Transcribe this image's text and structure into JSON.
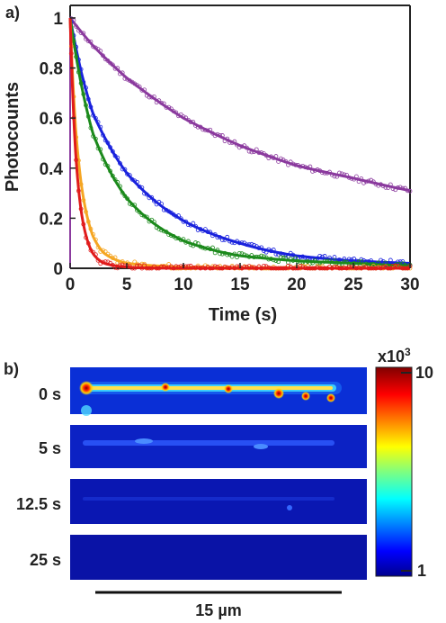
{
  "panel_a": {
    "label": "a)",
    "chart_data": {
      "type": "line",
      "xlabel": "Time (s)",
      "ylabel": "Photocounts",
      "xlim": [
        0,
        30
      ],
      "ylim": [
        0,
        1.05
      ],
      "x_ticks": [
        "0",
        "5",
        "10",
        "15",
        "20",
        "25",
        "30"
      ],
      "y_ticks": [
        "0",
        "0.2",
        "0.4",
        "0.6",
        "0.8",
        "1"
      ],
      "grid": false,
      "legend": "none",
      "series": [
        {
          "color": "#8b3a9e",
          "x": [
            0,
            2,
            5,
            10,
            15,
            20,
            25,
            30
          ],
          "y": [
            1.0,
            0.89,
            0.76,
            0.6,
            0.49,
            0.41,
            0.36,
            0.31
          ]
        },
        {
          "color": "#1a22dd",
          "x": [
            0,
            1,
            2,
            5,
            10,
            15,
            20,
            25,
            30
          ],
          "y": [
            1.0,
            0.78,
            0.62,
            0.38,
            0.19,
            0.1,
            0.05,
            0.03,
            0.02
          ]
        },
        {
          "color": "#1c8a1c",
          "x": [
            0,
            1,
            2,
            5,
            10,
            15,
            20,
            25,
            30
          ],
          "y": [
            1.0,
            0.73,
            0.54,
            0.28,
            0.11,
            0.05,
            0.03,
            0.02,
            0.01
          ]
        },
        {
          "color": "#f5a623",
          "x": [
            0,
            0.5,
            1,
            2,
            3,
            5,
            10,
            30
          ],
          "y": [
            1.0,
            0.55,
            0.33,
            0.13,
            0.06,
            0.02,
            0.005,
            0.0
          ]
        },
        {
          "color": "#e01b1b",
          "x": [
            0,
            0.5,
            1,
            2,
            3,
            5,
            10,
            30
          ],
          "y": [
            1.0,
            0.45,
            0.22,
            0.06,
            0.02,
            0.005,
            0.0,
            0.0
          ]
        }
      ]
    }
  },
  "panel_b": {
    "label": "b)",
    "rows": [
      {
        "time_label": "0 s",
        "intensity": 1.0
      },
      {
        "time_label": "5 s",
        "intensity": 0.22
      },
      {
        "time_label": "12.5 s",
        "intensity": 0.08
      },
      {
        "time_label": "25 s",
        "intensity": 0.02
      }
    ],
    "colorbar": {
      "multiplier_base": "x10",
      "multiplier_exp": "3",
      "max_label": "10",
      "min_label": "1"
    },
    "scale_bar_label": "15 µm"
  }
}
